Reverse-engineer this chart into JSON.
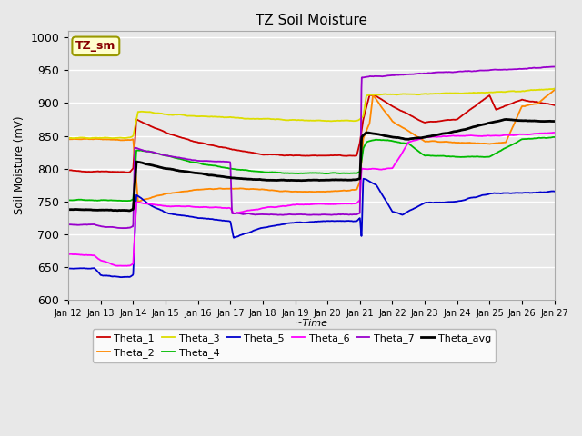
{
  "title": "TZ Soil Moisture",
  "ylabel": "Soil Moisture (mV)",
  "xlabel": "~Time",
  "ylim": [
    600,
    1010
  ],
  "yticks": [
    600,
    650,
    700,
    750,
    800,
    850,
    900,
    950,
    1000
  ],
  "bg_color": "#e8e8e8",
  "label_box_text": "TZ_sm",
  "series_colors": {
    "Theta_1": "#cc0000",
    "Theta_2": "#ff8800",
    "Theta_3": "#dddd00",
    "Theta_4": "#00bb00",
    "Theta_5": "#0000cc",
    "Theta_6": "#ff00ff",
    "Theta_7": "#9900cc",
    "Theta_avg": "#000000"
  },
  "x_tick_labels": [
    "Jan 12",
    "Jan 13",
    "Jan 14",
    "Jan 15",
    "Jan 16",
    "Jan 17",
    "Jan 18",
    "Jan 19",
    "Jan 20",
    "Jan 21",
    "Jan 22",
    "Jan 23",
    "Jan 24",
    "Jan 25",
    "Jan 26",
    "Jan 27"
  ]
}
